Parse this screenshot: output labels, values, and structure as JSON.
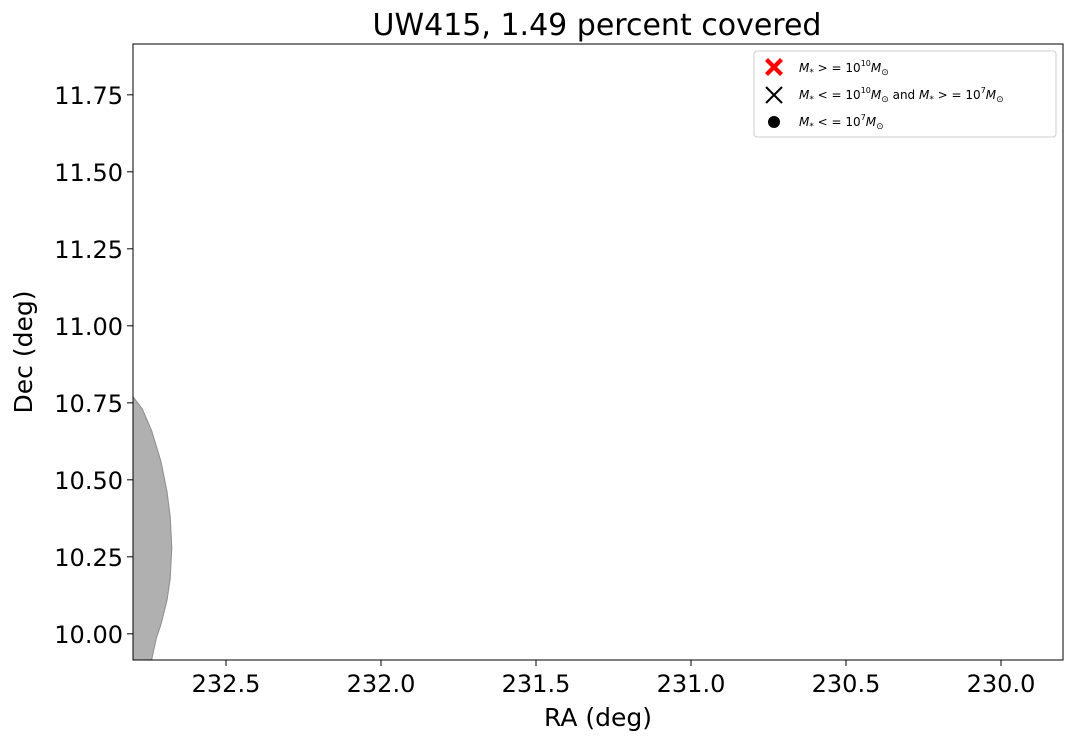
{
  "chart_data": {
    "type": "scatter",
    "title": "UW415, 1.49 percent covered",
    "xlabel": "RA (deg)",
    "ylabel": "Dec (deg)",
    "xlim": [
      232.8,
      229.8
    ],
    "ylim": [
      9.915,
      11.915
    ],
    "x_ticks": [
      "232.5",
      "232.0",
      "231.5",
      "231.0",
      "230.5",
      "230.0"
    ],
    "x_tick_values": [
      232.5,
      232.0,
      231.5,
      231.0,
      230.5,
      230.0
    ],
    "y_ticks": [
      "10.00",
      "10.25",
      "10.50",
      "10.75",
      "11.00",
      "11.25",
      "11.50",
      "11.75"
    ],
    "y_tick_values": [
      10.0,
      10.25,
      10.5,
      10.75,
      11.0,
      11.25,
      11.5,
      11.75
    ],
    "grid": false,
    "legend_position": "top-right",
    "legend": [
      {
        "label": "M* >= 10^10 M⊙",
        "marker": "x-filled",
        "color": "#ff0000"
      },
      {
        "label": "M* <= 10^10 M⊙ and M* >= 10^7 M⊙",
        "marker": "x",
        "color": "#000000"
      },
      {
        "label": "M* <= 10^7 M⊙",
        "marker": "dot",
        "color": "#000000"
      }
    ],
    "series": [
      {
        "marker": "x-filled",
        "color": "#ff0000",
        "points": []
      },
      {
        "marker": "x",
        "color": "#000000",
        "points": []
      },
      {
        "marker": "dot",
        "color": "#000000",
        "points": []
      }
    ],
    "coverage_region": {
      "fill": "#b0b0b0",
      "edge": "#8c8c8c",
      "boundary": [
        [
          232.8,
          10.77
        ],
        [
          232.77,
          10.73
        ],
        [
          232.74,
          10.66
        ],
        [
          232.71,
          10.56
        ],
        [
          232.69,
          10.46
        ],
        [
          232.68,
          10.38
        ],
        [
          232.675,
          10.28
        ],
        [
          232.68,
          10.18
        ],
        [
          232.69,
          10.11
        ],
        [
          232.71,
          10.03
        ],
        [
          232.725,
          9.985
        ],
        [
          232.74,
          9.915
        ],
        [
          232.8,
          9.915
        ]
      ]
    }
  }
}
